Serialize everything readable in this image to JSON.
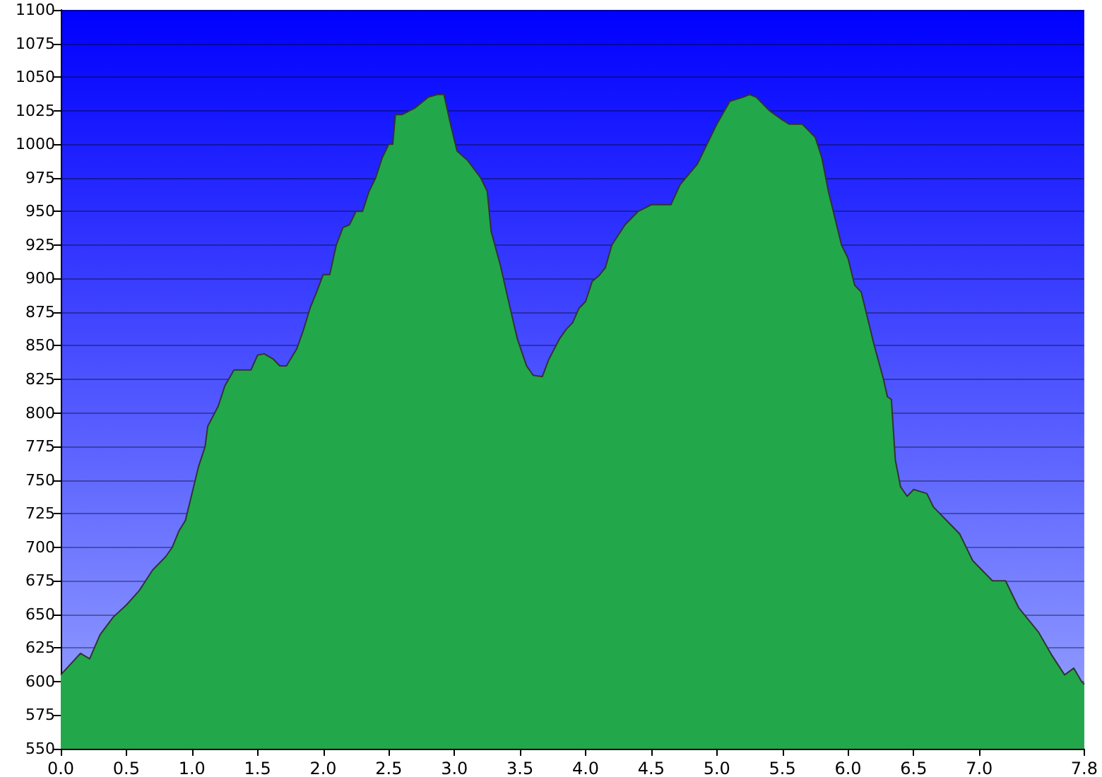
{
  "chart_data": {
    "type": "area",
    "x": [
      0,
      0.15,
      0.22,
      0.3,
      0.4,
      0.5,
      0.6,
      0.7,
      0.8,
      0.85,
      0.9,
      0.95,
      1.0,
      1.05,
      1.1,
      1.12,
      1.2,
      1.25,
      1.32,
      1.45,
      1.5,
      1.55,
      1.62,
      1.67,
      1.72,
      1.8,
      1.85,
      1.9,
      1.95,
      2.0,
      2.05,
      2.1,
      2.15,
      2.2,
      2.25,
      2.3,
      2.35,
      2.4,
      2.45,
      2.5,
      2.53,
      2.55,
      2.6,
      2.7,
      2.8,
      2.87,
      2.92,
      2.97,
      3.02,
      3.1,
      3.2,
      3.25,
      3.28,
      3.35,
      3.42,
      3.48,
      3.55,
      3.6,
      3.67,
      3.72,
      3.8,
      3.85,
      3.9,
      3.95,
      4.0,
      4.05,
      4.1,
      4.15,
      4.2,
      4.3,
      4.4,
      4.5,
      4.65,
      4.72,
      4.85,
      5.0,
      5.1,
      5.2,
      5.25,
      5.3,
      5.4,
      5.5,
      5.55,
      5.65,
      5.75,
      5.8,
      5.85,
      5.9,
      5.95,
      6.0,
      6.05,
      6.1,
      6.15,
      6.2,
      6.27,
      6.3,
      6.33,
      6.36,
      6.4,
      6.45,
      6.5,
      6.6,
      6.65,
      6.75,
      6.85,
      6.95,
      7.1,
      7.2,
      7.3,
      7.45,
      7.55,
      7.65,
      7.72,
      7.78,
      7.8
    ],
    "series": [
      {
        "color": "#22a84a",
        "values": [
          605,
          621,
          617,
          635,
          648,
          657,
          668,
          683,
          693,
          700,
          712,
          720,
          740,
          760,
          775,
          790,
          805,
          820,
          832,
          832,
          843,
          844,
          840,
          835,
          835,
          848,
          862,
          878,
          890,
          903,
          903,
          925,
          938,
          940,
          950,
          950,
          965,
          975,
          990,
          1000,
          1000,
          1022,
          1022,
          1027,
          1035,
          1037,
          1037,
          1015,
          995,
          988,
          975,
          965,
          935,
          910,
          880,
          855,
          835,
          828,
          827,
          840,
          855,
          862,
          867,
          878,
          883,
          898,
          902,
          908,
          925,
          940,
          950,
          955,
          955,
          970,
          985,
          1015,
          1032,
          1035,
          1037,
          1035,
          1025,
          1018,
          1015,
          1015,
          1005,
          990,
          965,
          945,
          925,
          915,
          895,
          890,
          870,
          850,
          825,
          812,
          810,
          765,
          745,
          738,
          743,
          740,
          730,
          720,
          710,
          690,
          675,
          675,
          655,
          637,
          620,
          605,
          610,
          600,
          598
        ]
      }
    ],
    "xlim": [
      0,
      7.8
    ],
    "xticks": [
      {
        "value": 0,
        "label": "0.0"
      },
      {
        "value": 0.5,
        "label": "0.5"
      },
      {
        "value": 1,
        "label": "1.0"
      },
      {
        "value": 1.5,
        "label": "1.5"
      },
      {
        "value": 2,
        "label": "2.0"
      },
      {
        "value": 2.5,
        "label": "2.5"
      },
      {
        "value": 3,
        "label": "3.0"
      },
      {
        "value": 3.5,
        "label": "3.5"
      },
      {
        "value": 4,
        "label": "4.0"
      },
      {
        "value": 4.5,
        "label": "4.5"
      },
      {
        "value": 5,
        "label": "5.0"
      },
      {
        "value": 5.5,
        "label": "5.5"
      },
      {
        "value": 6,
        "label": "6.0"
      },
      {
        "value": 6.5,
        "label": "6.5"
      },
      {
        "value": 7,
        "label": "7.0"
      },
      7.8
    ],
    "ylim": [
      550,
      1100
    ],
    "yticks": [
      550,
      575,
      600,
      625,
      650,
      675,
      700,
      725,
      750,
      775,
      800,
      825,
      850,
      875,
      900,
      925,
      950,
      975,
      1000,
      1025,
      1050,
      1075,
      1100
    ],
    "grid": "y",
    "marker": "none"
  }
}
